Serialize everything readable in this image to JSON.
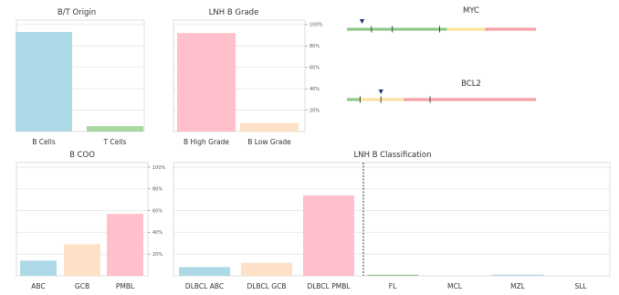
{
  "colors": {
    "blue": "#add8e6",
    "green": "#a8d8a0",
    "pink": "#ffc0cb",
    "peach": "#fde0c5",
    "gene_green": "#90c98a",
    "gene_yellow": "#fce3a1",
    "gene_red": "#f4a0a4",
    "marker": "#1a3a6e"
  },
  "chart_data": [
    {
      "id": "bt_origin",
      "type": "bar",
      "title": "B/T Origin",
      "categories": [
        "B Cells",
        "T Cells"
      ],
      "values": [
        0.93,
        0.05
      ],
      "colors": [
        "blue",
        "green"
      ],
      "ylim": [
        0,
        1
      ],
      "yticks": [],
      "grid": true
    },
    {
      "id": "lnh_b_grade",
      "type": "bar",
      "title": "LNH B Grade",
      "categories": [
        "B High Grade",
        "B Low Grade"
      ],
      "values": [
        0.92,
        0.08
      ],
      "colors": [
        "pink",
        "peach"
      ],
      "ylim": [
        0,
        1
      ],
      "yticks": [
        "20%",
        "40%",
        "60%",
        "80%",
        "100%"
      ],
      "grid": true
    },
    {
      "id": "b_coo",
      "type": "bar",
      "title": "B COO",
      "categories": [
        "ABC",
        "GCB",
        "PMBL"
      ],
      "values": [
        0.14,
        0.29,
        0.57
      ],
      "colors": [
        "blue",
        "peach",
        "pink"
      ],
      "ylim": [
        0,
        1
      ],
      "yticks": [
        "20%",
        "40%",
        "60%",
        "80%",
        "100%"
      ],
      "grid": true
    },
    {
      "id": "lnh_b_classification",
      "type": "bar",
      "title": "LNH B Classification",
      "categories": [
        "DLBCL ABC",
        "DLBCL GCB",
        "DLBCL PMBL",
        "FL",
        "MCL",
        "MZL",
        "SLL"
      ],
      "values": [
        0.08,
        0.12,
        0.74,
        0.01,
        0,
        0.01,
        0
      ],
      "colors": [
        "blue",
        "peach",
        "pink",
        "gene_green",
        "gene_green",
        "blue",
        "blue"
      ],
      "ylim": [
        0,
        1
      ],
      "yticks": [],
      "grid": true,
      "divider_after_index": 2
    },
    {
      "id": "myc",
      "type": "bar",
      "title": "MYC",
      "segments": [
        {
          "color": "gene_green",
          "start": 0,
          "end": 0.53
        },
        {
          "color": "gene_yellow",
          "start": 0.53,
          "end": 0.73
        },
        {
          "color": "gene_red",
          "start": 0.73,
          "end": 1
        }
      ],
      "ticks": [
        0.13,
        0.24,
        0.49
      ],
      "marker": 0.08
    },
    {
      "id": "bcl2",
      "type": "bar",
      "title": "BCL2",
      "segments": [
        {
          "color": "gene_green",
          "start": 0,
          "end": 0.07
        },
        {
          "color": "gene_yellow",
          "start": 0.07,
          "end": 0.3
        },
        {
          "color": "gene_red",
          "start": 0.3,
          "end": 1
        }
      ],
      "ticks": [
        0.07,
        0.18,
        0.44
      ],
      "marker": 0.18
    }
  ]
}
